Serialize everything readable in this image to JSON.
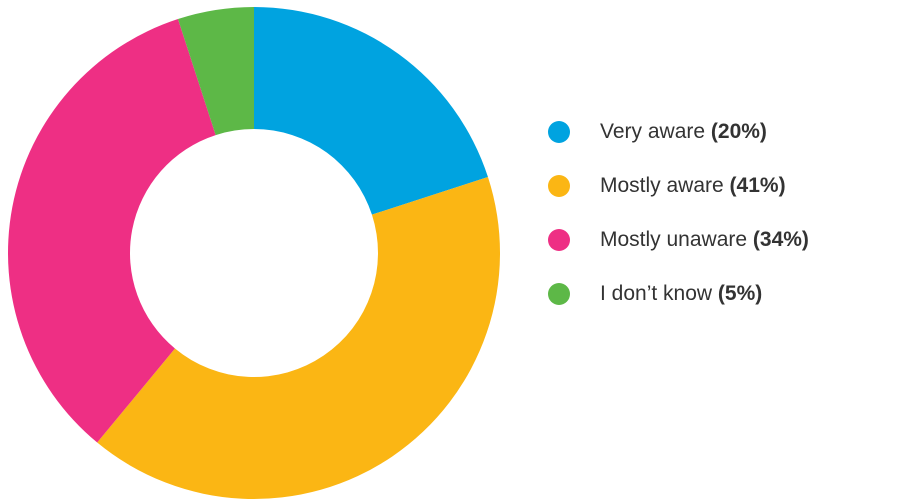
{
  "chart_data": {
    "type": "pie",
    "donut": true,
    "title": "",
    "legend_position": "right",
    "categories": [
      "Very aware",
      "Mostly aware",
      "Mostly unaware",
      "I don’t know"
    ],
    "values": [
      20,
      41,
      34,
      5
    ],
    "value_labels": [
      "(20%)",
      "(41%)",
      "(34%)",
      "(5%)"
    ],
    "colors": [
      "#00A3E0",
      "#FBB614",
      "#EE2F84",
      "#5DB847"
    ]
  }
}
